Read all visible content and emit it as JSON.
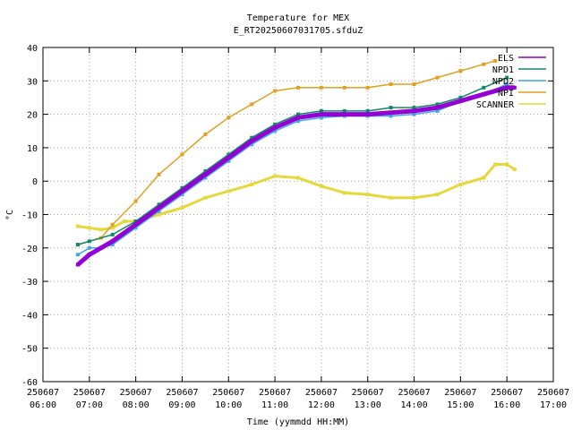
{
  "chart_data": {
    "type": "line",
    "title": "Temperature for MEX",
    "subtitle": "E_RT20250607031705.sfduZ",
    "xlabel": "Time (yymmdd HH:MM)",
    "ylabel": "°C",
    "xlim": [
      "250607 06:00",
      "250607 17:00"
    ],
    "ylim": [
      -60,
      40
    ],
    "grid": true,
    "legend_position": "top-right",
    "x_ticks": [
      {
        "date": "250607",
        "time": "06:00",
        "h": 6
      },
      {
        "date": "250607",
        "time": "07:00",
        "h": 7
      },
      {
        "date": "250607",
        "time": "08:00",
        "h": 8
      },
      {
        "date": "250607",
        "time": "09:00",
        "h": 9
      },
      {
        "date": "250607",
        "time": "10:00",
        "h": 10
      },
      {
        "date": "250607",
        "time": "11:00",
        "h": 11
      },
      {
        "date": "250607",
        "time": "12:00",
        "h": 12
      },
      {
        "date": "250607",
        "time": "13:00",
        "h": 13
      },
      {
        "date": "250607",
        "time": "14:00",
        "h": 14
      },
      {
        "date": "250607",
        "time": "15:00",
        "h": 15
      },
      {
        "date": "250607",
        "time": "16:00",
        "h": 16
      },
      {
        "date": "250607",
        "time": "17:00",
        "h": 17
      }
    ],
    "y_ticks": [
      40,
      30,
      20,
      10,
      0,
      -10,
      -20,
      -30,
      -40,
      -50,
      -60
    ],
    "series": [
      {
        "name": "SCANNER",
        "color": "#e5d83a",
        "x": [
          "06:45",
          "07:00",
          "07:15",
          "07:30",
          "07:45",
          "08:00",
          "08:30",
          "09:00",
          "09:30",
          "10:00",
          "10:30",
          "11:00",
          "11:30",
          "12:00",
          "12:30",
          "13:00",
          "13:30",
          "14:00",
          "14:30",
          "15:00",
          "15:30",
          "15:45",
          "16:00",
          "16:10"
        ],
        "y": [
          -13.5,
          -14,
          -14.5,
          -14,
          -12,
          -12,
          -10,
          -8,
          -5,
          -3,
          -1,
          1.5,
          1,
          -1.5,
          -3.5,
          -4,
          -5,
          -5,
          -4,
          -1,
          1,
          5,
          5,
          3.5
        ]
      },
      {
        "name": "NPI",
        "color": "#e0a020",
        "x": [
          "06:45",
          "07:15",
          "07:30",
          "08:00",
          "08:30",
          "09:00",
          "09:30",
          "10:00",
          "10:30",
          "11:00",
          "11:30",
          "12:00",
          "12:30",
          "13:00",
          "13:30",
          "14:00",
          "14:30",
          "15:00",
          "15:30",
          "15:45"
        ],
        "y": [
          -19,
          -17,
          -13,
          -6,
          2,
          8,
          14,
          19,
          23,
          27,
          28,
          28,
          28,
          28,
          29,
          29,
          31,
          33,
          35,
          36
        ]
      },
      {
        "name": "NPD2",
        "color": "#40a8e0",
        "x": [
          "06:45",
          "07:00",
          "07:15",
          "07:30",
          "08:00",
          "08:30",
          "09:00",
          "09:30",
          "10:00",
          "10:30",
          "11:00",
          "11:30",
          "12:00",
          "12:30",
          "13:00",
          "13:30",
          "14:00",
          "14:30",
          "15:00",
          "15:30",
          "16:00"
        ],
        "y": [
          -22,
          -20,
          -20,
          -19,
          -14,
          -9,
          -4,
          1,
          6,
          11,
          15,
          18,
          19,
          19.5,
          19.5,
          19.5,
          20,
          21,
          24,
          26,
          29
        ]
      },
      {
        "name": "NPD1",
        "color": "#108868",
        "x": [
          "06:45",
          "07:00",
          "07:30",
          "08:00",
          "08:30",
          "09:00",
          "09:30",
          "10:00",
          "10:30",
          "11:00",
          "11:30",
          "12:00",
          "12:30",
          "13:00",
          "13:30",
          "14:00",
          "14:30",
          "15:00",
          "15:30",
          "16:00"
        ],
        "y": [
          -19,
          -18,
          -16,
          -12,
          -7,
          -2,
          3,
          8,
          13,
          17,
          20,
          21,
          21,
          21,
          22,
          22,
          23,
          25,
          28,
          31
        ]
      },
      {
        "name": "ELS",
        "color": "#9400d3",
        "x": [
          "06:45",
          "07:00",
          "07:15",
          "07:30",
          "08:00",
          "08:30",
          "09:00",
          "09:30",
          "10:00",
          "10:30",
          "11:00",
          "11:30",
          "12:00",
          "12:30",
          "13:00",
          "13:30",
          "14:00",
          "14:30",
          "15:00",
          "15:30",
          "16:00",
          "16:10"
        ],
        "y": [
          -25,
          -22,
          -20,
          -18,
          -13,
          -8,
          -3,
          2,
          7,
          12,
          16,
          19,
          20,
          20,
          20,
          20.5,
          21,
          22,
          24,
          26,
          28,
          28
        ]
      }
    ],
    "legend": [
      {
        "name": "ELS",
        "color": "#9400d3"
      },
      {
        "name": "NPD1",
        "color": "#108868"
      },
      {
        "name": "NPD2",
        "color": "#40a8e0"
      },
      {
        "name": "NPI",
        "color": "#e0a020"
      },
      {
        "name": "SCANNER",
        "color": "#e5d83a"
      }
    ]
  }
}
